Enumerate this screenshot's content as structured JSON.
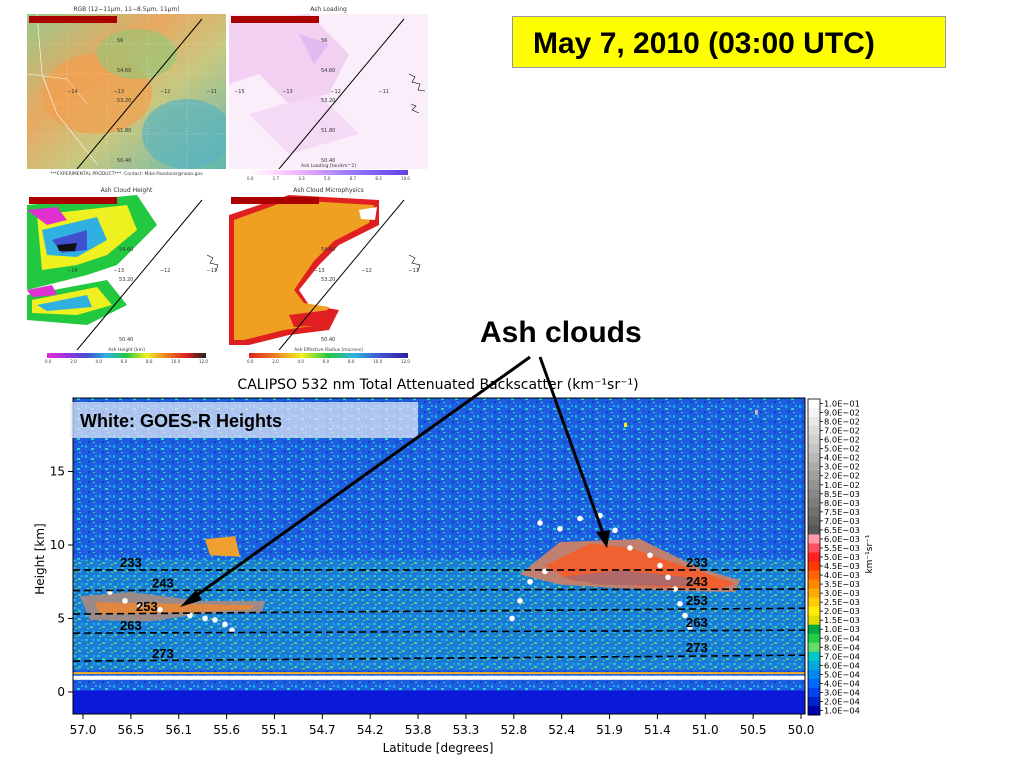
{
  "header": {
    "date_label": "May 7, 2010 (03:00 UTC)"
  },
  "panels": {
    "rgb": {
      "title": "RGB (12−11μm, 11−8.5μm, 11μm)",
      "footer": "***EXPERIMENTAL PRODUCT***. Contact: Mike.Pavolonis@noaa.gov",
      "lat_labels": [
        "56",
        "54.60",
        "53.20",
        "51.80",
        "50.40"
      ],
      "lon_labels": [
        "−14",
        "−13",
        "−12",
        "−11"
      ]
    },
    "loading": {
      "title": "Ash Loading",
      "cbar_title": "Ash Loading [ton/km^2]",
      "cbar_ticks": [
        "0.0",
        "1.7",
        "3.3",
        "5.0",
        "6.7",
        "8.3",
        "10.0"
      ],
      "lat_labels": [
        "56",
        "54.60",
        "53.20",
        "51.80",
        "50.40"
      ],
      "lon_labels": [
        "−15",
        "−13",
        "−12",
        "−11"
      ]
    },
    "height": {
      "title": "Ash Cloud Height",
      "cbar_title": "Ash Height [km]",
      "cbar_ticks": [
        "0.0",
        "2.0",
        "4.0",
        "6.0",
        "8.0",
        "10.0",
        "12.0"
      ],
      "lat_labels": [
        "54.60",
        "53.20",
        "50.40"
      ],
      "lon_labels": [
        "−14",
        "−13",
        "−12",
        "−11"
      ]
    },
    "micro": {
      "title": "Ash Cloud Microphysics",
      "cbar_title": "Ash Effective Radius [microns]",
      "cbar_ticks": [
        "0.0",
        "2.0",
        "4.0",
        "6.0",
        "8.0",
        "10.0",
        "12.0"
      ],
      "lat_labels": [
        "54.60",
        "53.20",
        "50.40"
      ],
      "lon_labels": [
        "−13",
        "−12",
        "−11"
      ]
    }
  },
  "annotations": {
    "ash_clouds": "Ash clouds",
    "white_label": "White: GOES-R Heights"
  },
  "chart_data": {
    "type": "heatmap",
    "title": "CALIPSO 532 nm Total Attenuated Backscatter (km⁻¹sr⁻¹)",
    "xlabel": "Latitude [degrees]",
    "ylabel": "Height [km]",
    "x_ticks": [
      "57.0",
      "56.5",
      "56.1",
      "55.6",
      "55.1",
      "54.7",
      "54.2",
      "53.8",
      "53.3",
      "52.8",
      "52.4",
      "51.9",
      "51.4",
      "51.0",
      "50.5",
      "50.0"
    ],
    "y_ticks": [
      "0",
      "5",
      "10",
      "15"
    ],
    "ylim": [
      -1.5,
      20
    ],
    "colorbar_unit": "km⁻¹sr⁻¹",
    "colorbar_labels": [
      "1.0E−01",
      "9.0E−02",
      "8.0E−02",
      "7.0E−02",
      "6.0E−02",
      "5.0E−02",
      "4.0E−02",
      "3.0E−02",
      "2.0E−02",
      "1.0E−02",
      "8.5E−03",
      "8.0E−03",
      "7.5E−03",
      "7.0E−03",
      "6.5E−03",
      "6.0E−03",
      "5.5E−03",
      "5.0E−03",
      "4.5E−03",
      "4.0E−03",
      "3.5E−03",
      "3.0E−03",
      "2.5E−03",
      "2.0E−03",
      "1.5E−03",
      "1.0E−03",
      "9.0E−04",
      "8.0E−04",
      "7.0E−04",
      "6.0E−04",
      "5.0E−04",
      "4.0E−04",
      "3.0E−04",
      "2.0E−04",
      "1.0E−04"
    ],
    "colorbar_colors": [
      "#ffffff",
      "#f4f4f4",
      "#e8e8e8",
      "#dcdcdc",
      "#d0d0d0",
      "#c4c4c4",
      "#b8b8b8",
      "#acacac",
      "#a0a0a0",
      "#949494",
      "#888888",
      "#7c7c7c",
      "#707070",
      "#646464",
      "#585858",
      "#ff9aaa",
      "#ff5060",
      "#ff2020",
      "#ff3a00",
      "#ff6400",
      "#ff8800",
      "#ffaa00",
      "#ffcc00",
      "#ffee00",
      "#dddd00",
      "#00aa44",
      "#22cc44",
      "#66dd66",
      "#00c8c8",
      "#00aadd",
      "#0088ee",
      "#0066ff",
      "#0044ee",
      "#0022cc",
      "#0000aa"
    ],
    "height_lines": [
      {
        "label": "233",
        "left_km": 8.3,
        "right_km": 8.3
      },
      {
        "label": "243",
        "left_km": 6.9,
        "right_km": 7.0
      },
      {
        "label": "253",
        "left_km": 5.3,
        "right_km": 5.7
      },
      {
        "label": "263",
        "left_km": 4.0,
        "right_km": 4.2
      },
      {
        "label": "273",
        "left_km": 2.1,
        "right_km": 2.5
      }
    ]
  }
}
